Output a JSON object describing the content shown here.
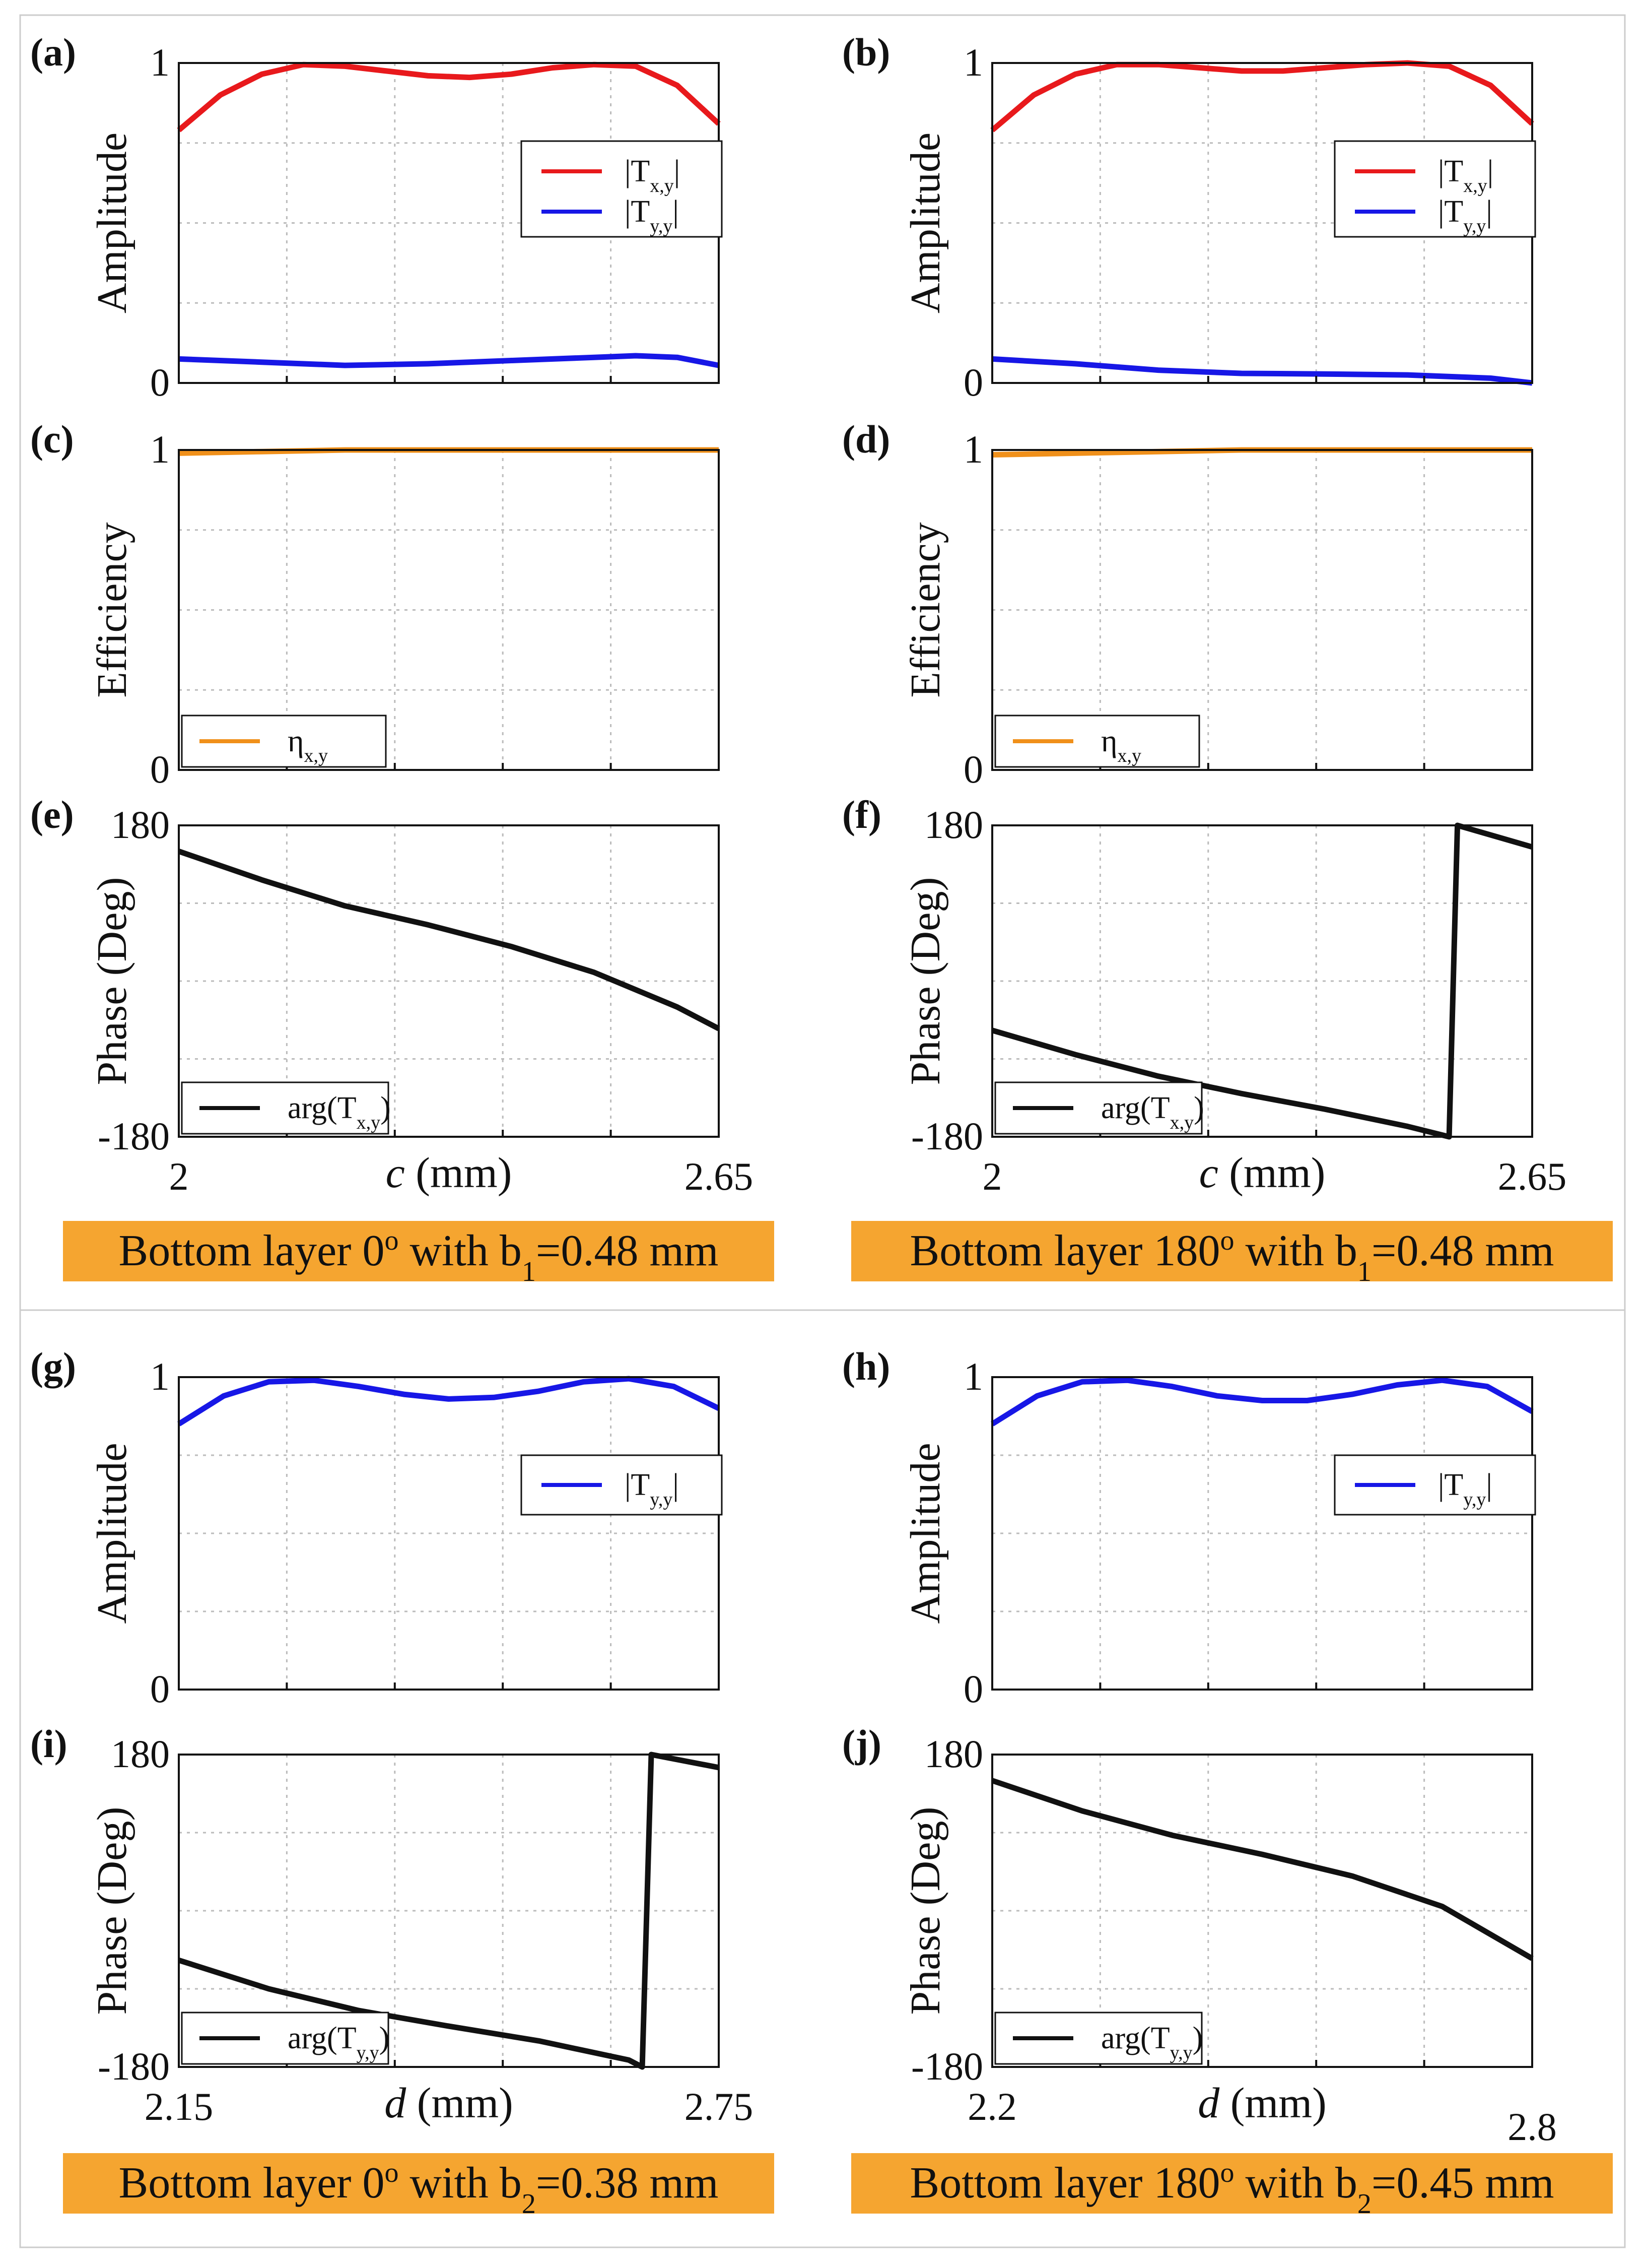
{
  "colors": {
    "red": "#e8191c",
    "blue": "#1717e6",
    "orange": "#f0901a",
    "black": "#111111",
    "banner": "#f5a530",
    "grid": "#bbbbbb"
  },
  "banners": [
    {
      "base": "Bottom layer 0",
      "sup": "o",
      "mid": " with b",
      "sub": "1",
      "end": "=0.48 mm"
    },
    {
      "base": "Bottom layer 180",
      "sup": "o",
      "mid": " with b",
      "sub": "1",
      "end": "=0.48 mm"
    },
    {
      "base": "Bottom layer 0",
      "sup": "o",
      "mid": " with b",
      "sub": "2",
      "end": "=0.38 mm"
    },
    {
      "base": "Bottom layer 180",
      "sup": "o",
      "mid": " with b",
      "sub": "2",
      "end": "=0.45 mm"
    }
  ],
  "chart_data": [
    {
      "panel": "(a)",
      "type": "line",
      "ylabel": "Amplitude",
      "ylim": [
        0,
        1
      ],
      "yticks": [
        "0",
        "1"
      ],
      "xlim": [
        2,
        2.65
      ],
      "legend": {
        "position": "right",
        "entries": [
          {
            "base": "|T",
            "sub": "x,y",
            "suffix": "|",
            "color": "#e8191c"
          },
          {
            "base": "|T",
            "sub": "y,y",
            "suffix": "|",
            "color": "#1717e6"
          }
        ]
      },
      "series": [
        {
          "name": "|Tx,y|",
          "color": "#e8191c",
          "x": [
            2.0,
            2.05,
            2.1,
            2.15,
            2.2,
            2.25,
            2.3,
            2.35,
            2.4,
            2.45,
            2.5,
            2.55,
            2.6,
            2.65
          ],
          "y": [
            0.79,
            0.9,
            0.965,
            0.995,
            0.99,
            0.975,
            0.96,
            0.955,
            0.965,
            0.985,
            0.995,
            0.99,
            0.93,
            0.81
          ]
        },
        {
          "name": "|Ty,y|",
          "color": "#1717e6",
          "x": [
            2.0,
            2.1,
            2.2,
            2.3,
            2.4,
            2.5,
            2.55,
            2.6,
            2.65
          ],
          "y": [
            0.075,
            0.065,
            0.055,
            0.06,
            0.07,
            0.08,
            0.085,
            0.08,
            0.055
          ]
        }
      ]
    },
    {
      "panel": "(b)",
      "type": "line",
      "ylabel": "Amplitude",
      "ylim": [
        0,
        1
      ],
      "yticks": [
        "0",
        "1"
      ],
      "xlim": [
        2,
        2.65
      ],
      "legend": {
        "position": "right",
        "entries": [
          {
            "base": "|T",
            "sub": "x,y",
            "suffix": "|",
            "color": "#e8191c"
          },
          {
            "base": "|T",
            "sub": "y,y",
            "suffix": "|",
            "color": "#1717e6"
          }
        ]
      },
      "series": [
        {
          "name": "|Tx,y|",
          "color": "#e8191c",
          "x": [
            2.0,
            2.05,
            2.1,
            2.15,
            2.2,
            2.25,
            2.3,
            2.35,
            2.4,
            2.45,
            2.5,
            2.55,
            2.6,
            2.65
          ],
          "y": [
            0.79,
            0.9,
            0.965,
            0.995,
            0.995,
            0.985,
            0.975,
            0.975,
            0.985,
            0.995,
            1.0,
            0.99,
            0.93,
            0.81
          ]
        },
        {
          "name": "|Ty,y|",
          "color": "#1717e6",
          "x": [
            2.0,
            2.1,
            2.2,
            2.3,
            2.4,
            2.5,
            2.6,
            2.65
          ],
          "y": [
            0.075,
            0.06,
            0.04,
            0.03,
            0.028,
            0.025,
            0.015,
            0.0
          ]
        }
      ]
    },
    {
      "panel": "(c)",
      "type": "line",
      "ylabel": "Efficiency",
      "ylim": [
        0,
        1
      ],
      "yticks": [
        "0",
        "1"
      ],
      "xlim": [
        2,
        2.65
      ],
      "legend": {
        "position": "bottom-left",
        "entries": [
          {
            "base": "η",
            "sub": "x,y",
            "suffix": "",
            "color": "#f0901a"
          }
        ]
      },
      "series": [
        {
          "name": "ηx,y",
          "color": "#f0901a",
          "x": [
            2.0,
            2.1,
            2.2,
            2.3,
            2.4,
            2.5,
            2.65
          ],
          "y": [
            0.99,
            0.995,
            1.0,
            1.0,
            1.0,
            1.0,
            1.0
          ]
        }
      ]
    },
    {
      "panel": "(d)",
      "type": "line",
      "ylabel": "Efficiency",
      "ylim": [
        0,
        1
      ],
      "yticks": [
        "0",
        "1"
      ],
      "xlim": [
        2,
        2.65
      ],
      "legend": {
        "position": "bottom-left",
        "entries": [
          {
            "base": "η",
            "sub": "x,y",
            "suffix": "",
            "color": "#f0901a"
          }
        ]
      },
      "series": [
        {
          "name": "ηx,y",
          "color": "#f0901a",
          "x": [
            2.0,
            2.1,
            2.2,
            2.3,
            2.4,
            2.5,
            2.65
          ],
          "y": [
            0.985,
            0.99,
            0.995,
            1.0,
            1.0,
            1.0,
            1.0
          ]
        }
      ]
    },
    {
      "panel": "(e)",
      "type": "line",
      "ylabel": "Phase (Deg)",
      "ylim": [
        -180,
        180
      ],
      "yticks": [
        "-180",
        "180"
      ],
      "xlim": [
        2,
        2.65
      ],
      "xticks": [
        "2",
        "2.65"
      ],
      "xlabel": {
        "var": "c",
        "unit": " (mm)"
      },
      "legend": {
        "position": "bottom-left",
        "entries": [
          {
            "base": "arg(T",
            "sub": "x,y",
            "suffix": ")",
            "color": "#111111"
          }
        ]
      },
      "series": [
        {
          "name": "arg(Tx,y)",
          "color": "#111111",
          "x": [
            2.0,
            2.1,
            2.2,
            2.3,
            2.4,
            2.5,
            2.6,
            2.65
          ],
          "y": [
            150,
            117,
            87,
            65,
            40,
            10,
            -30,
            -55
          ]
        }
      ]
    },
    {
      "panel": "(f)",
      "type": "line",
      "ylabel": "Phase (Deg)",
      "ylim": [
        -180,
        180
      ],
      "yticks": [
        "-180",
        "180"
      ],
      "xlim": [
        2,
        2.65
      ],
      "xticks": [
        "2",
        "2.65"
      ],
      "xlabel": {
        "var": "c",
        "unit": " (mm)"
      },
      "legend": {
        "position": "bottom-left",
        "entries": [
          {
            "base": "arg(T",
            "sub": "x,y",
            "suffix": ")",
            "color": "#111111"
          }
        ]
      },
      "series": [
        {
          "name": "arg(Tx,y)",
          "color": "#111111",
          "x": [
            2.0,
            2.1,
            2.2,
            2.3,
            2.4,
            2.5,
            2.55,
            2.56,
            2.65
          ],
          "y": [
            -57,
            -85,
            -110,
            -130,
            -148,
            -168,
            -180,
            180,
            155
          ]
        }
      ]
    },
    {
      "panel": "(g)",
      "type": "line",
      "ylabel": "Amplitude",
      "ylim": [
        0,
        1
      ],
      "yticks": [
        "0",
        "1"
      ],
      "xlim": [
        2.15,
        2.75
      ],
      "legend": {
        "position": "right",
        "entries": [
          {
            "base": "|T",
            "sub": "y,y",
            "suffix": "|",
            "color": "#1717e6"
          }
        ]
      },
      "series": [
        {
          "name": "|Ty,y|",
          "color": "#1717e6",
          "x": [
            2.15,
            2.2,
            2.25,
            2.3,
            2.35,
            2.4,
            2.45,
            2.5,
            2.55,
            2.6,
            2.65,
            2.7,
            2.75
          ],
          "y": [
            0.85,
            0.94,
            0.985,
            0.99,
            0.97,
            0.945,
            0.93,
            0.935,
            0.955,
            0.985,
            0.995,
            0.97,
            0.9
          ]
        }
      ]
    },
    {
      "panel": "(h)",
      "type": "line",
      "ylabel": "Amplitude",
      "ylim": [
        0,
        1
      ],
      "yticks": [
        "0",
        "1"
      ],
      "xlim": [
        2.2,
        2.8
      ],
      "legend": {
        "position": "right",
        "entries": [
          {
            "base": "|T",
            "sub": "y,y",
            "suffix": "|",
            "color": "#1717e6"
          }
        ]
      },
      "series": [
        {
          "name": "|Ty,y|",
          "color": "#1717e6",
          "x": [
            2.2,
            2.25,
            2.3,
            2.35,
            2.4,
            2.45,
            2.5,
            2.55,
            2.6,
            2.65,
            2.7,
            2.75,
            2.8
          ],
          "y": [
            0.85,
            0.94,
            0.985,
            0.99,
            0.97,
            0.94,
            0.925,
            0.925,
            0.945,
            0.975,
            0.99,
            0.97,
            0.89
          ]
        }
      ]
    },
    {
      "panel": "(i)",
      "type": "line",
      "ylabel": "Phase (Deg)",
      "ylim": [
        -180,
        180
      ],
      "yticks": [
        "-180",
        "180"
      ],
      "xlim": [
        2.15,
        2.75
      ],
      "xticks": [
        "2.15",
        "2.75"
      ],
      "xlabel": {
        "var": "d",
        "unit": " (mm)"
      },
      "legend": {
        "position": "bottom-left",
        "entries": [
          {
            "base": "arg(T",
            "sub": "y,y",
            "suffix": ")",
            "color": "#111111"
          }
        ]
      },
      "series": [
        {
          "name": "arg(Ty,y)",
          "color": "#111111",
          "x": [
            2.15,
            2.25,
            2.35,
            2.45,
            2.55,
            2.65,
            2.665,
            2.675,
            2.75
          ],
          "y": [
            -57,
            -90,
            -115,
            -133,
            -150,
            -172,
            -180,
            180,
            165
          ]
        }
      ]
    },
    {
      "panel": "(j)",
      "type": "line",
      "ylabel": "Phase (Deg)",
      "ylim": [
        -180,
        180
      ],
      "yticks": [
        "-180",
        "180"
      ],
      "xlim": [
        2.2,
        2.8
      ],
      "xticks": [
        "2.2",
        "2.8"
      ],
      "xlabel": {
        "var": "d",
        "unit": " (mm)"
      },
      "legend": {
        "position": "bottom-left",
        "entries": [
          {
            "base": "arg(T",
            "sub": "y,y",
            "suffix": ")",
            "color": "#111111"
          }
        ]
      },
      "series": [
        {
          "name": "arg(Ty,y)",
          "color": "#111111",
          "x": [
            2.2,
            2.3,
            2.4,
            2.5,
            2.6,
            2.7,
            2.8
          ],
          "y": [
            150,
            115,
            87,
            65,
            40,
            5,
            -55
          ]
        }
      ]
    }
  ]
}
